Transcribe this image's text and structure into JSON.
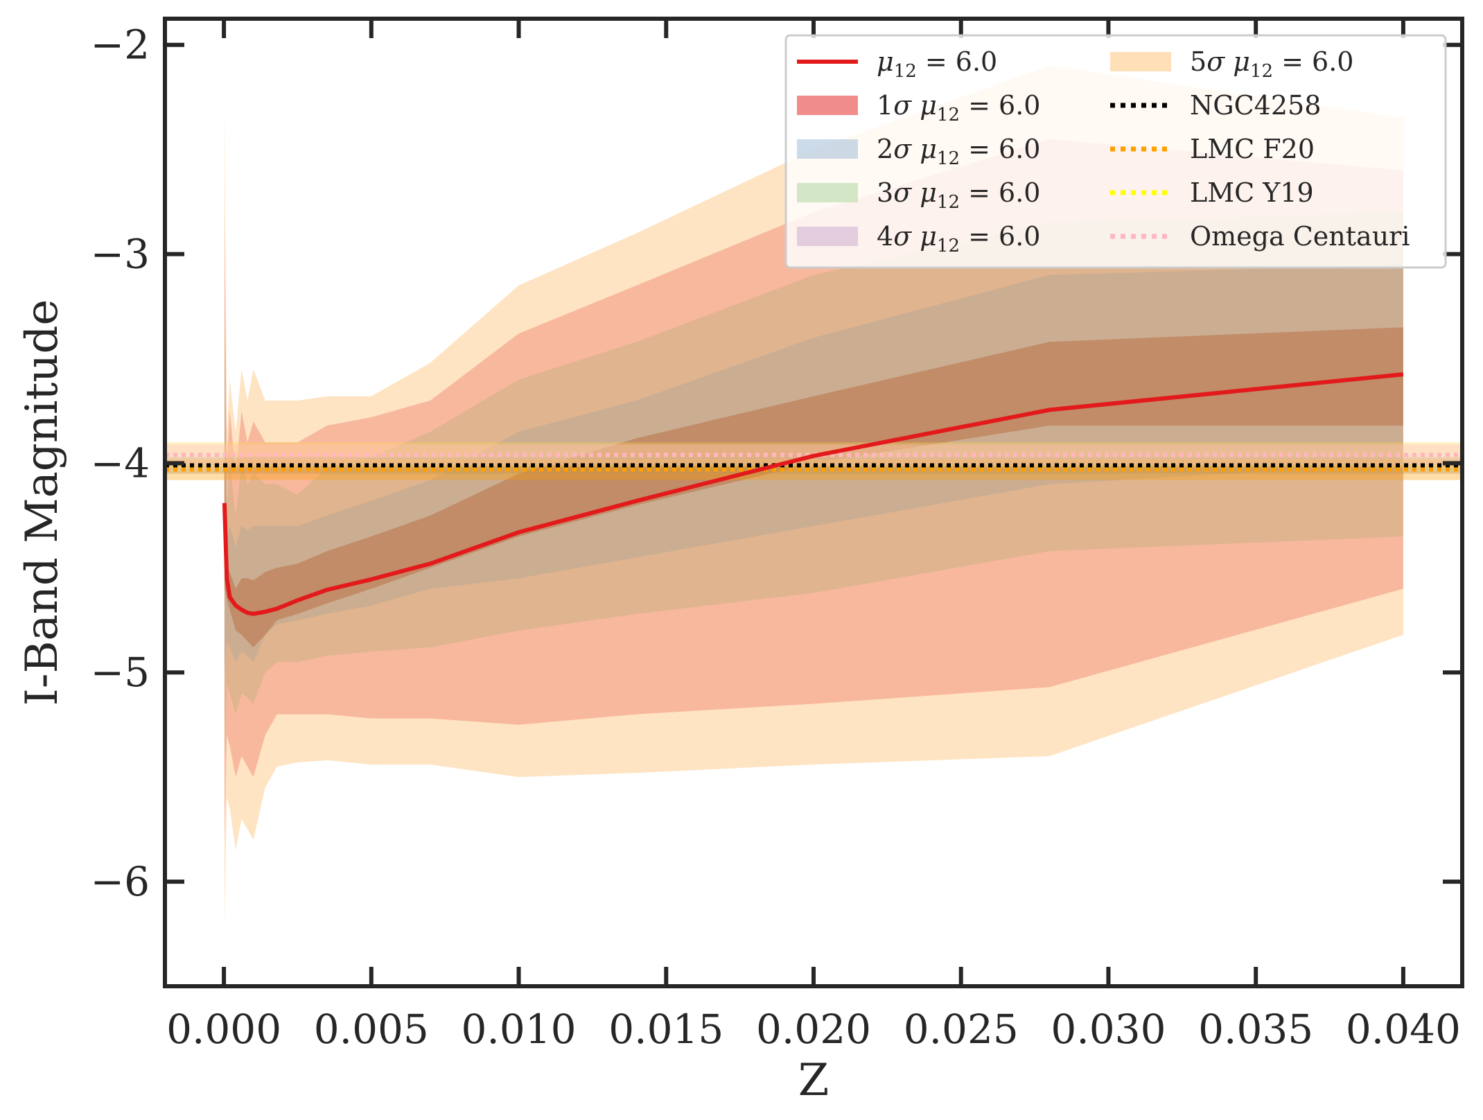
{
  "chart_data": {
    "type": "line",
    "xlabel": "Z",
    "ylabel": "I-Band Magnitude",
    "xlim": [
      -0.002,
      0.042
    ],
    "ylim": [
      -6.5,
      -1.875
    ],
    "y_inverted": false,
    "x_ticks": [
      0.0,
      0.005,
      0.01,
      0.015,
      0.02,
      0.025,
      0.03,
      0.035,
      0.04
    ],
    "x_tick_labels": [
      "0.000",
      "0.005",
      "0.010",
      "0.015",
      "0.020",
      "0.025",
      "0.030",
      "0.035",
      "0.040"
    ],
    "y_ticks": [
      -2,
      -3,
      -4,
      -5,
      -6
    ],
    "y_tick_labels": [
      "−2",
      "−3",
      "−4",
      "−5",
      "−6"
    ],
    "grid": false,
    "legend_position": "top-right",
    "legend_columns": 2,
    "x": [
      2e-05,
      0.0001,
      0.0002,
      0.0004,
      0.0006,
      0.0008,
      0.001,
      0.0014,
      0.0018,
      0.0025,
      0.0035,
      0.005,
      0.007,
      0.01,
      0.014,
      0.02,
      0.028,
      0.04
    ],
    "series": [
      {
        "name_base": "μ",
        "name_sub": "12",
        "name_rest": " = 6.0",
        "color": "#e31a1c",
        "style": "solid",
        "values": [
          -4.19,
          -4.55,
          -4.64,
          -4.68,
          -4.7,
          -4.715,
          -4.72,
          -4.71,
          -4.695,
          -4.655,
          -4.605,
          -4.555,
          -4.48,
          -4.33,
          -4.18,
          -3.965,
          -3.745,
          -3.575
        ]
      }
    ],
    "bands": [
      {
        "sigma": "5",
        "color": "#fdbf6f",
        "opacity": 0.42,
        "lower": [
          -6.2,
          -5.6,
          -5.65,
          -5.85,
          -5.7,
          -5.75,
          -5.8,
          -5.55,
          -5.45,
          -5.43,
          -5.42,
          -5.44,
          -5.44,
          -5.5,
          -5.48,
          -5.44,
          -5.4,
          -4.82
        ],
        "upper": [
          -2.3,
          -3.85,
          -3.6,
          -3.85,
          -3.55,
          -3.7,
          -3.55,
          -3.7,
          -3.7,
          -3.7,
          -3.68,
          -3.68,
          -3.52,
          -3.15,
          -2.9,
          -2.5,
          -2.1,
          -2.35
        ]
      },
      {
        "sigma": "4",
        "color": "#cab2d6",
        "opacity": 0.0,
        "lower": [
          -5.8,
          -5.3,
          -5.35,
          -5.5,
          -5.4,
          -5.45,
          -5.5,
          -5.3,
          -5.2,
          -5.2,
          -5.2,
          -5.22,
          -5.22,
          -5.25,
          -5.2,
          -5.15,
          -5.07,
          -4.6
        ],
        "upper": [
          -2.8,
          -4.0,
          -3.75,
          -4.05,
          -3.75,
          -3.9,
          -3.8,
          -3.9,
          -3.9,
          -3.9,
          -3.82,
          -3.78,
          -3.7,
          -3.38,
          -3.15,
          -2.8,
          -2.45,
          -2.6
        ]
      },
      {
        "sigma": "1",
        "color": "#e31a1c",
        "opacity": 0.22,
        "lower": [
          -5.8,
          -5.3,
          -5.35,
          -5.5,
          -5.4,
          -5.45,
          -5.5,
          -5.3,
          -5.2,
          -5.2,
          -5.2,
          -5.22,
          -5.22,
          -5.25,
          -5.2,
          -5.15,
          -5.07,
          -4.6
        ],
        "upper": [
          -2.8,
          -4.0,
          -3.75,
          -4.05,
          -3.75,
          -3.9,
          -3.8,
          -3.9,
          -3.9,
          -3.9,
          -3.82,
          -3.78,
          -3.7,
          -3.38,
          -3.15,
          -2.8,
          -2.45,
          -2.6
        ]
      },
      {
        "sigma": "3",
        "color": "#33a02c",
        "opacity": 0.12,
        "lower": [
          -5.4,
          -5.05,
          -5.1,
          -5.2,
          -5.1,
          -5.12,
          -5.15,
          -5.0,
          -4.95,
          -4.95,
          -4.92,
          -4.9,
          -4.88,
          -4.8,
          -4.72,
          -4.62,
          -4.42,
          -4.35
        ],
        "upper": [
          -3.2,
          -4.2,
          -4.0,
          -4.25,
          -4.0,
          -4.1,
          -4.05,
          -4.1,
          -4.1,
          -4.15,
          -4.02,
          -3.97,
          -3.85,
          -3.6,
          -3.42,
          -3.1,
          -2.85,
          -2.8
        ]
      },
      {
        "sigma": "2",
        "color": "#1f78b4",
        "opacity": 0.1,
        "lower": [
          -5.0,
          -4.85,
          -4.88,
          -4.95,
          -4.9,
          -4.92,
          -4.95,
          -4.82,
          -4.77,
          -4.75,
          -4.72,
          -4.68,
          -4.6,
          -4.55,
          -4.45,
          -4.3,
          -4.1,
          -4.0
        ],
        "upper": [
          -3.5,
          -4.35,
          -4.3,
          -4.4,
          -4.3,
          -4.32,
          -4.3,
          -4.3,
          -4.3,
          -4.3,
          -4.25,
          -4.18,
          -4.08,
          -3.85,
          -3.7,
          -3.4,
          -3.1,
          -3.05
        ]
      },
      {
        "sigma": "1",
        "color": "#b15928",
        "opacity": 0.4,
        "lower": [
          -4.6,
          -4.65,
          -4.7,
          -4.8,
          -4.82,
          -4.85,
          -4.88,
          -4.82,
          -4.75,
          -4.72,
          -4.67,
          -4.6,
          -4.5,
          -4.35,
          -4.2,
          -4.0,
          -3.82,
          -3.82
        ],
        "upper": [
          -3.9,
          -4.5,
          -4.52,
          -4.6,
          -4.55,
          -4.55,
          -4.56,
          -4.52,
          -4.5,
          -4.48,
          -4.42,
          -4.35,
          -4.25,
          -4.05,
          -3.88,
          -3.68,
          -3.42,
          -3.35
        ]
      }
    ],
    "hlines": [
      {
        "name": "NGC4258",
        "value": -4.01,
        "color": "#000000",
        "band": 0.04,
        "band_color": "#8c8c8c"
      },
      {
        "name": "LMC F20",
        "value": -4.03,
        "color": "#ff9f00",
        "band": 0.05,
        "band_color": "#ff9f00"
      },
      {
        "name": "LMC Y19",
        "value": -3.96,
        "color": "#ffff00",
        "band": 0.06,
        "band_color": "#ffd84d"
      },
      {
        "name": "Omega Centauri",
        "value": -3.96,
        "color": "#ffb6c1",
        "band": 0.05,
        "band_color": "#ffc0cb"
      }
    ],
    "legend": {
      "left": [
        {
          "kind": "line",
          "prefix": "",
          "base": "μ",
          "sub": "12",
          "rest": " = 6.0",
          "color": "#e31a1c"
        },
        {
          "kind": "patch",
          "prefix": "1σ ",
          "base": "μ",
          "sub": "12",
          "rest": " = 6.0",
          "color": "#e31a1c",
          "opacity": 0.5
        },
        {
          "kind": "patch",
          "prefix": "2σ ",
          "base": "μ",
          "sub": "12",
          "rest": " = 6.0",
          "color": "#9ab8d4",
          "opacity": 0.5
        },
        {
          "kind": "patch",
          "prefix": "3σ ",
          "base": "μ",
          "sub": "12",
          "rest": " = 6.0",
          "color": "#a8d49a",
          "opacity": 0.5
        },
        {
          "kind": "patch",
          "prefix": "4σ ",
          "base": "μ",
          "sub": "12",
          "rest": " = 6.0",
          "color": "#c8a6cc",
          "opacity": 0.5
        }
      ],
      "right": [
        {
          "kind": "patch",
          "prefix": "5σ ",
          "base": "μ",
          "sub": "12",
          "rest": " = 6.0",
          "color": "#fdbf6f",
          "opacity": 0.5
        },
        {
          "kind": "dotted",
          "label": "NGC4258",
          "color": "#000000"
        },
        {
          "kind": "dotted",
          "label": "LMC F20",
          "color": "#ff9f00"
        },
        {
          "kind": "dotted",
          "label": "LMC Y19",
          "color": "#ffff00"
        },
        {
          "kind": "dotted",
          "label": "Omega Centauri",
          "color": "#ffb6c1"
        }
      ]
    }
  }
}
